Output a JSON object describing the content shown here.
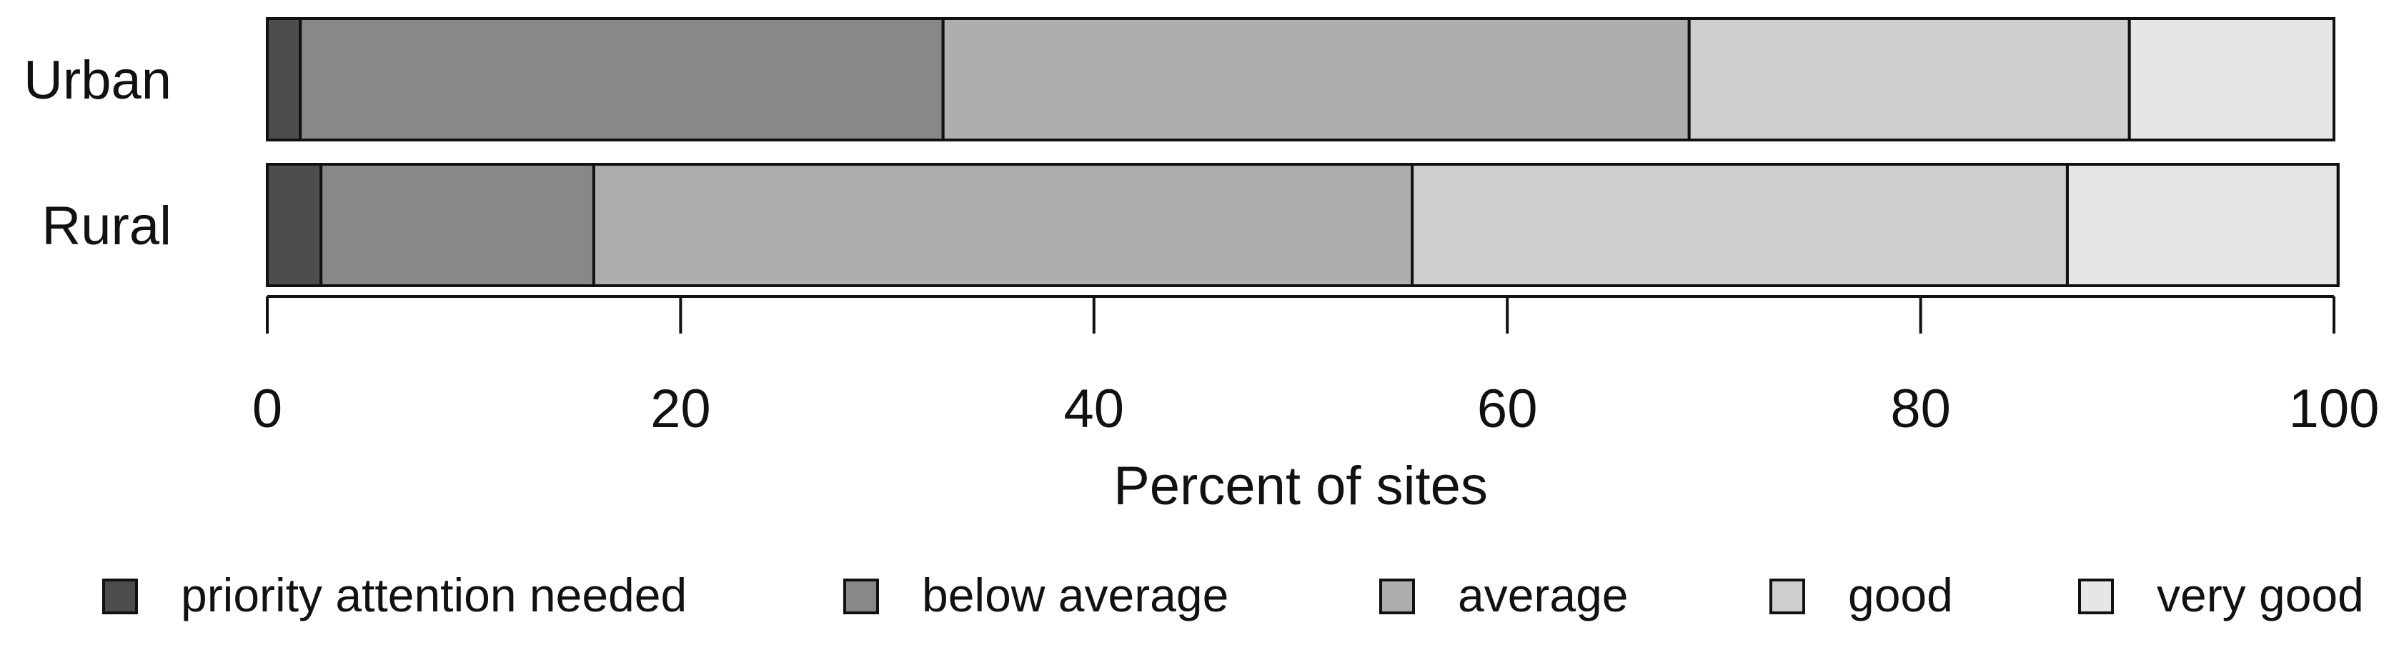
{
  "chart_data": {
    "type": "bar",
    "orientation": "horizontal",
    "stacked": true,
    "title": "",
    "xlabel": "Percent of sites",
    "ylabel": "",
    "xlim": [
      0,
      100
    ],
    "xticks": [
      "0",
      "20",
      "40",
      "60",
      "80",
      "100"
    ],
    "xtick_values": [
      0,
      20,
      40,
      60,
      80,
      100
    ],
    "grid": false,
    "legend_position": "bottom",
    "categories": [
      "Urban",
      "Rural"
    ],
    "series": [
      {
        "name": "priority attention needed",
        "color": "#4d4d4d",
        "values": [
          1.6,
          2.6
        ]
      },
      {
        "name": "below average",
        "color": "#888888",
        "values": [
          31.1,
          13.2
        ]
      },
      {
        "name": "average",
        "color": "#aeaeae",
        "values": [
          36.1,
          39.6
        ]
      },
      {
        "name": "good",
        "color": "#cfcfcf",
        "values": [
          21.3,
          31.7
        ]
      },
      {
        "name": "very good",
        "color": "#e6e6e6",
        "values": [
          9.9,
          13.1
        ]
      }
    ]
  }
}
